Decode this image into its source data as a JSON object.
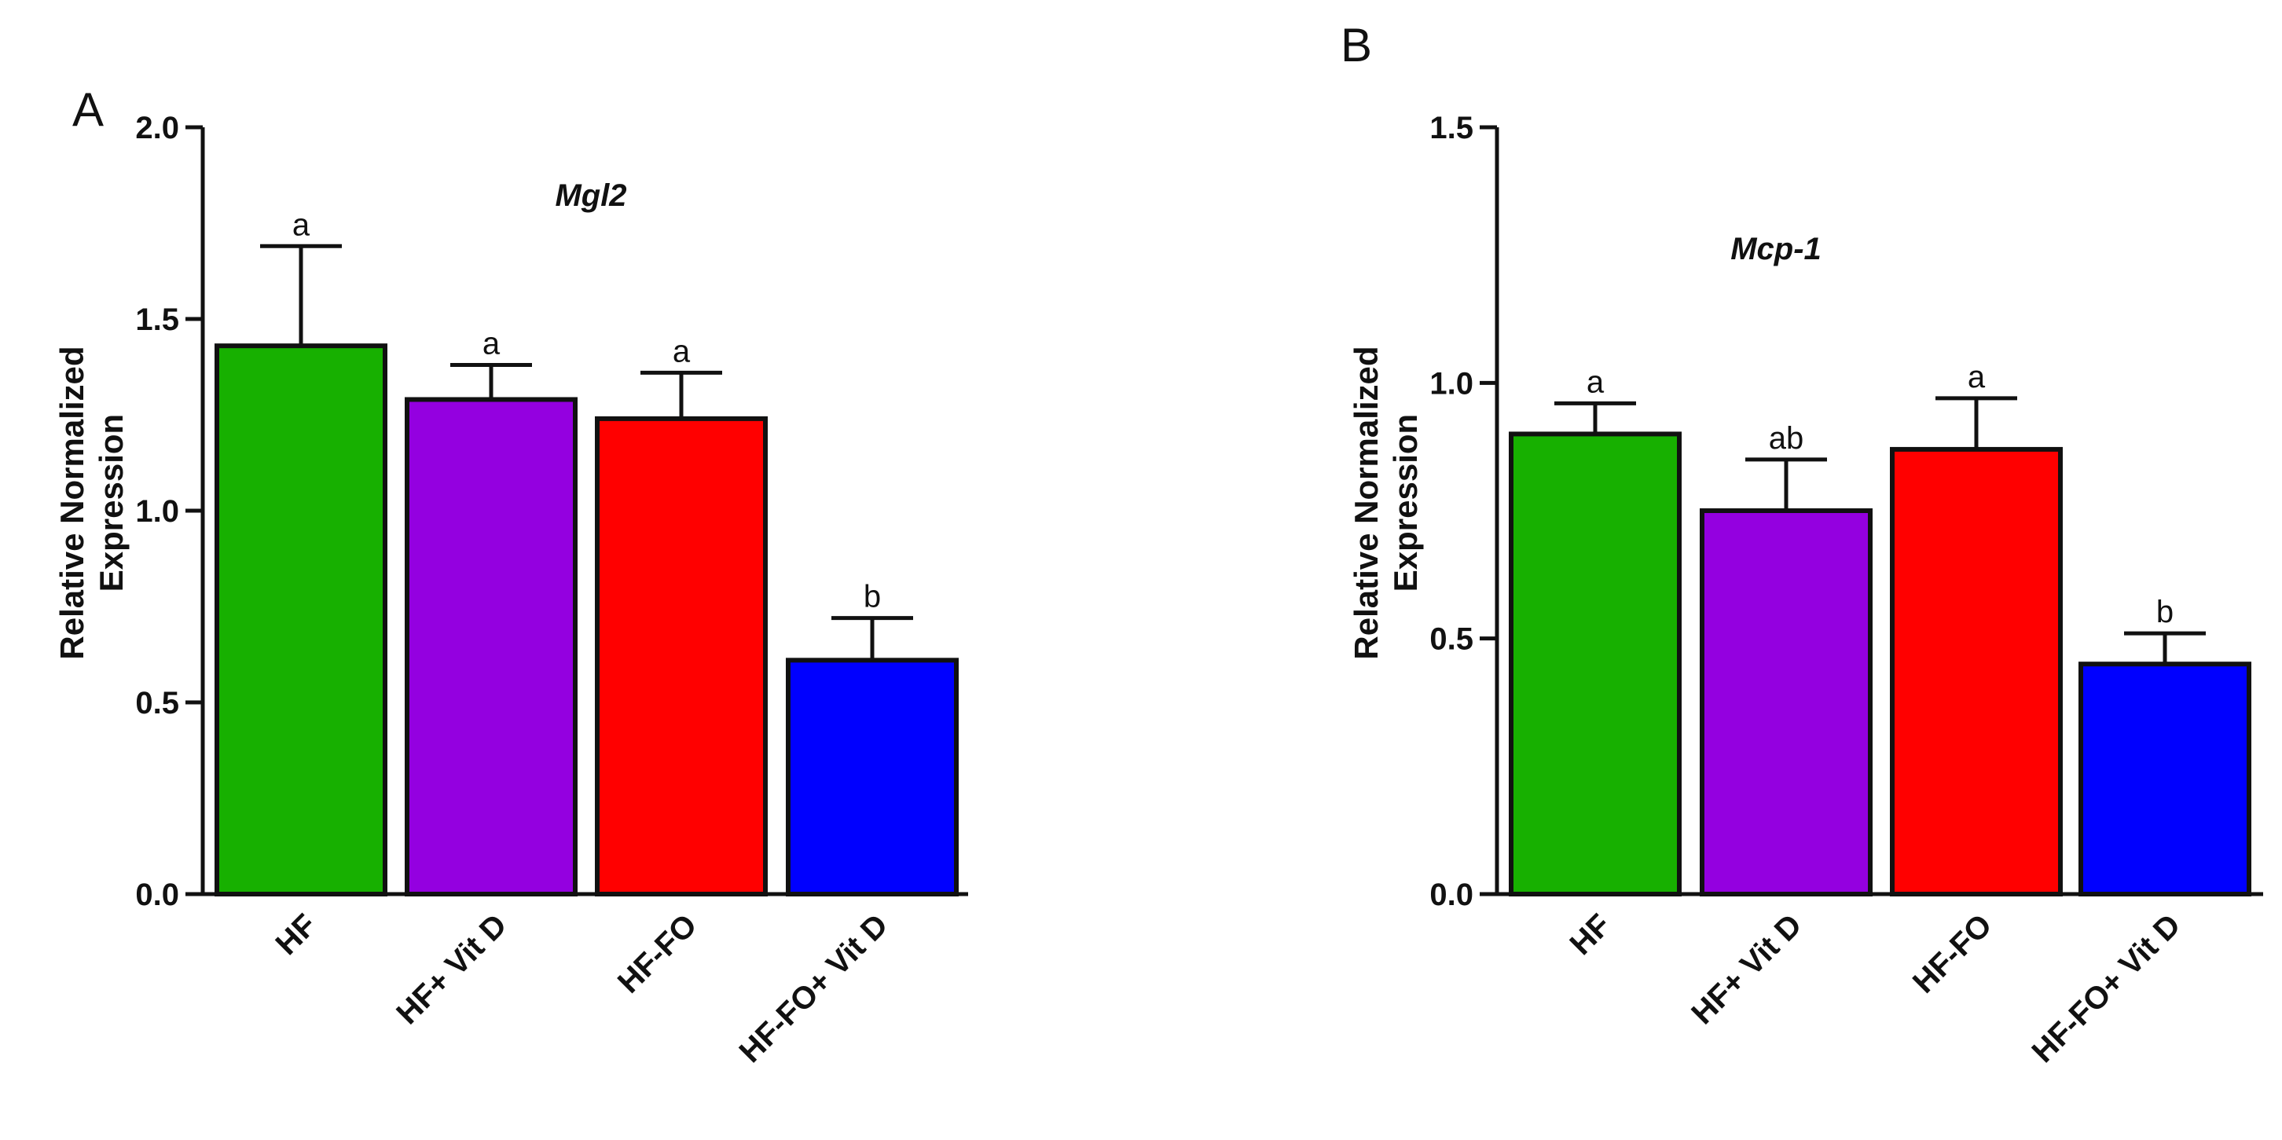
{
  "figure": {
    "colors": {
      "HF": "#17b000",
      "HF+ Vit D": "#9400e0",
      "HF-FO": "#ff0000",
      "HF-FO+ Vit D": "#0000ff",
      "outline": "#111111"
    }
  },
  "chart_data": [
    {
      "panel_label": "A",
      "type": "bar",
      "title": "Mgl2",
      "ylabel_lines": [
        "Relative Normalized",
        "Expression"
      ],
      "xlabel": "",
      "categories": [
        "HF",
        "HF+ Vit D",
        "HF-FO",
        "HF-FO+ Vit D"
      ],
      "values": [
        1.43,
        1.29,
        1.24,
        0.61
      ],
      "errors": [
        0.26,
        0.09,
        0.12,
        0.11
      ],
      "significance": [
        "a",
        "a",
        "a",
        "b"
      ],
      "ylim": [
        0,
        2.0
      ],
      "yticks": [
        "0.0",
        "0.5",
        "1.0",
        "1.5",
        "2.0"
      ],
      "grid": false
    },
    {
      "panel_label": "B",
      "type": "bar",
      "title": "Mcp-1",
      "ylabel_lines": [
        "Relative Normalized",
        "Expression"
      ],
      "xlabel": "",
      "categories": [
        "HF",
        "HF+ Vit D",
        "HF-FO",
        "HF-FO+ Vit D"
      ],
      "values": [
        0.9,
        0.75,
        0.87,
        0.45
      ],
      "errors": [
        0.06,
        0.1,
        0.1,
        0.06
      ],
      "significance": [
        "a",
        "ab",
        "a",
        "b"
      ],
      "ylim": [
        0,
        1.5
      ],
      "yticks": [
        "0.0",
        "0.5",
        "1.0",
        "1.5"
      ],
      "grid": false
    }
  ]
}
